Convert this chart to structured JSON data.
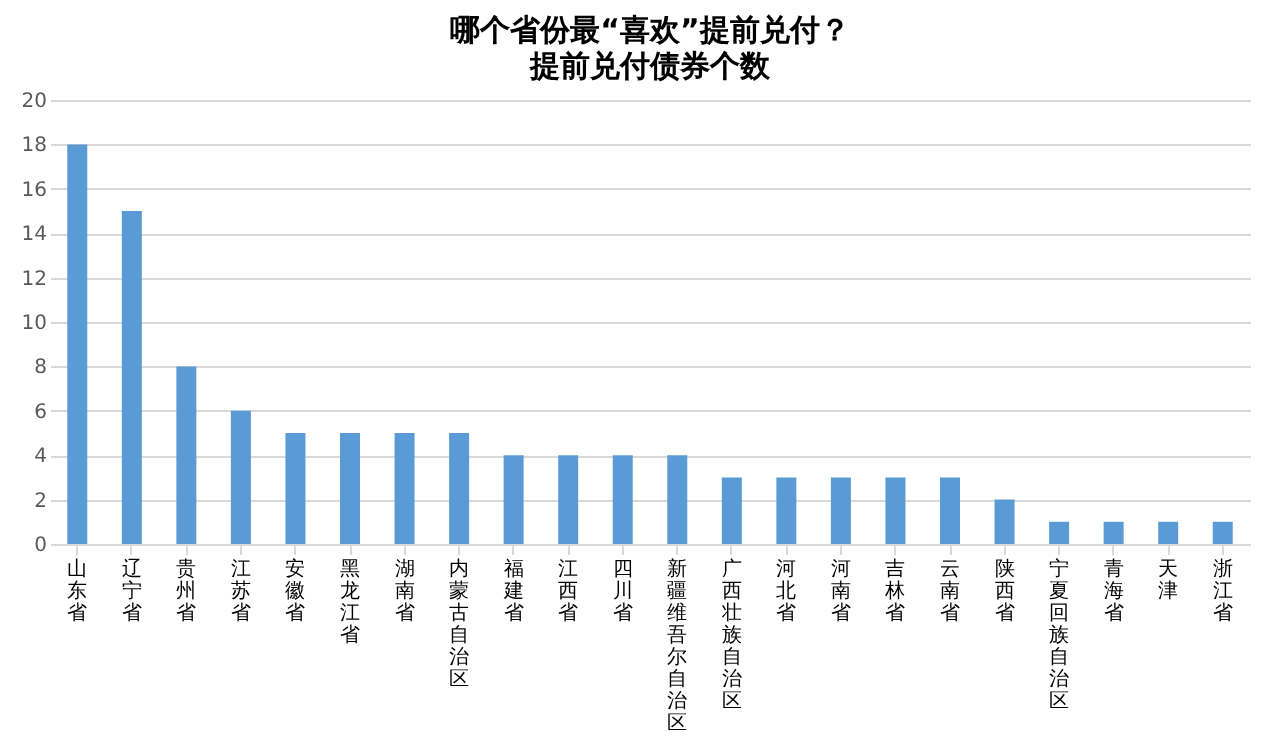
{
  "chart_data": {
    "type": "bar",
    "title": "哪个省份最“喜欢”提前兑付？",
    "subtitle": "提前兑付债券个数",
    "categories": [
      "山东省",
      "辽宁省",
      "贵州省",
      "江苏省",
      "安徽省",
      "黑龙江省",
      "湖南省",
      "内蒙古自治区",
      "福建省",
      "江西省",
      "四川省",
      "新疆维吾尔自治区",
      "广西壮族自治区",
      "河北省",
      "河南省",
      "吉林省",
      "云南省",
      "陕西省",
      "宁夏回族自治区",
      "青海省",
      "天津",
      "浙江省"
    ],
    "values": [
      18,
      15,
      8,
      6,
      5,
      5,
      5,
      5,
      4,
      4,
      4,
      4,
      3,
      3,
      3,
      3,
      3,
      2,
      1,
      1,
      1,
      1
    ],
    "color": "#5b9bd5",
    "ylim": [
      0,
      20
    ],
    "yticks": [
      0,
      2,
      4,
      6,
      8,
      10,
      12,
      14,
      16,
      18,
      20
    ],
    "grid": "y"
  }
}
